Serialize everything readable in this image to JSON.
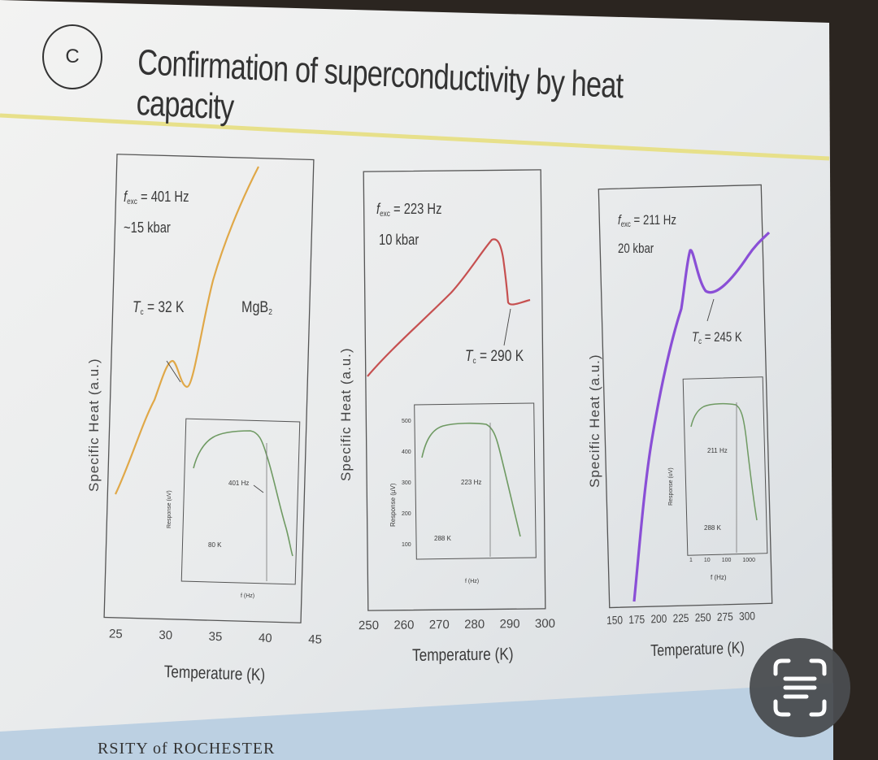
{
  "slide": {
    "marker": "C",
    "title": "Confirmation of superconductivity by heat capacity",
    "footer": "RSITY of ROCHESTER"
  },
  "panels": [
    {
      "freq_label": "f",
      "freq_sub": "exc",
      "freq_value": " = 401 Hz",
      "pressure": "~15 kbar",
      "tc_label": "T",
      "tc_sub": "c",
      "tc_value": " = 32 K",
      "material": "MgB",
      "material_sub": "2",
      "ylabel": "Specific Heat (a.u.)",
      "xlabel": "Temperature (K)",
      "xticks": [
        "25",
        "30",
        "35",
        "40",
        "45"
      ],
      "inset_marker_freq": "401 Hz",
      "inset_legend": "80 K",
      "inset_ylabel": "Response (uV)",
      "inset_xlabel": "f (Hz)"
    },
    {
      "freq_label": "f",
      "freq_sub": "exc",
      "freq_value": " = 223 Hz",
      "pressure": "10 kbar",
      "tc_label": "T",
      "tc_sub": "c",
      "tc_value": " = 290 K",
      "ylabel": "Specific Heat (a.u.)",
      "xlabel": "Temperature (K)",
      "xticks": [
        "250",
        "260",
        "270",
        "280",
        "290",
        "300"
      ],
      "inset_marker_freq": "223 Hz",
      "inset_legend": "288 K",
      "inset_ylabel": "Response (µV)",
      "inset_yticks": [
        "500",
        "400",
        "300",
        "200",
        "100"
      ],
      "inset_xlabel": "f (Hz)"
    },
    {
      "freq_label": "f",
      "freq_sub": "exc",
      "freq_value": " = 211 Hz",
      "pressure": "20 kbar",
      "tc_label": "T",
      "tc_sub": "c",
      "tc_value": " = 245 K",
      "ylabel": "Specific Heat (a.u.)",
      "xlabel": "Temperature (K)",
      "xticks": [
        "150",
        "175",
        "200",
        "225",
        "250",
        "275",
        "300"
      ],
      "inset_marker_freq": "211 Hz",
      "inset_legend": "288 K",
      "inset_ylabel": "Response (uV)",
      "inset_xticks": [
        "1",
        "10",
        "100",
        "1000"
      ],
      "inset_xlabel": "f (Hz)"
    }
  ],
  "colors": {
    "panel1_curve": "#e0a848",
    "panel2_curve": "#c65050",
    "panel3_curve": "#8a4fd6",
    "inset_curve": "#6f9a63",
    "accent_line": "#e7e08a"
  },
  "icons": [
    "lens-scan-icon"
  ]
}
